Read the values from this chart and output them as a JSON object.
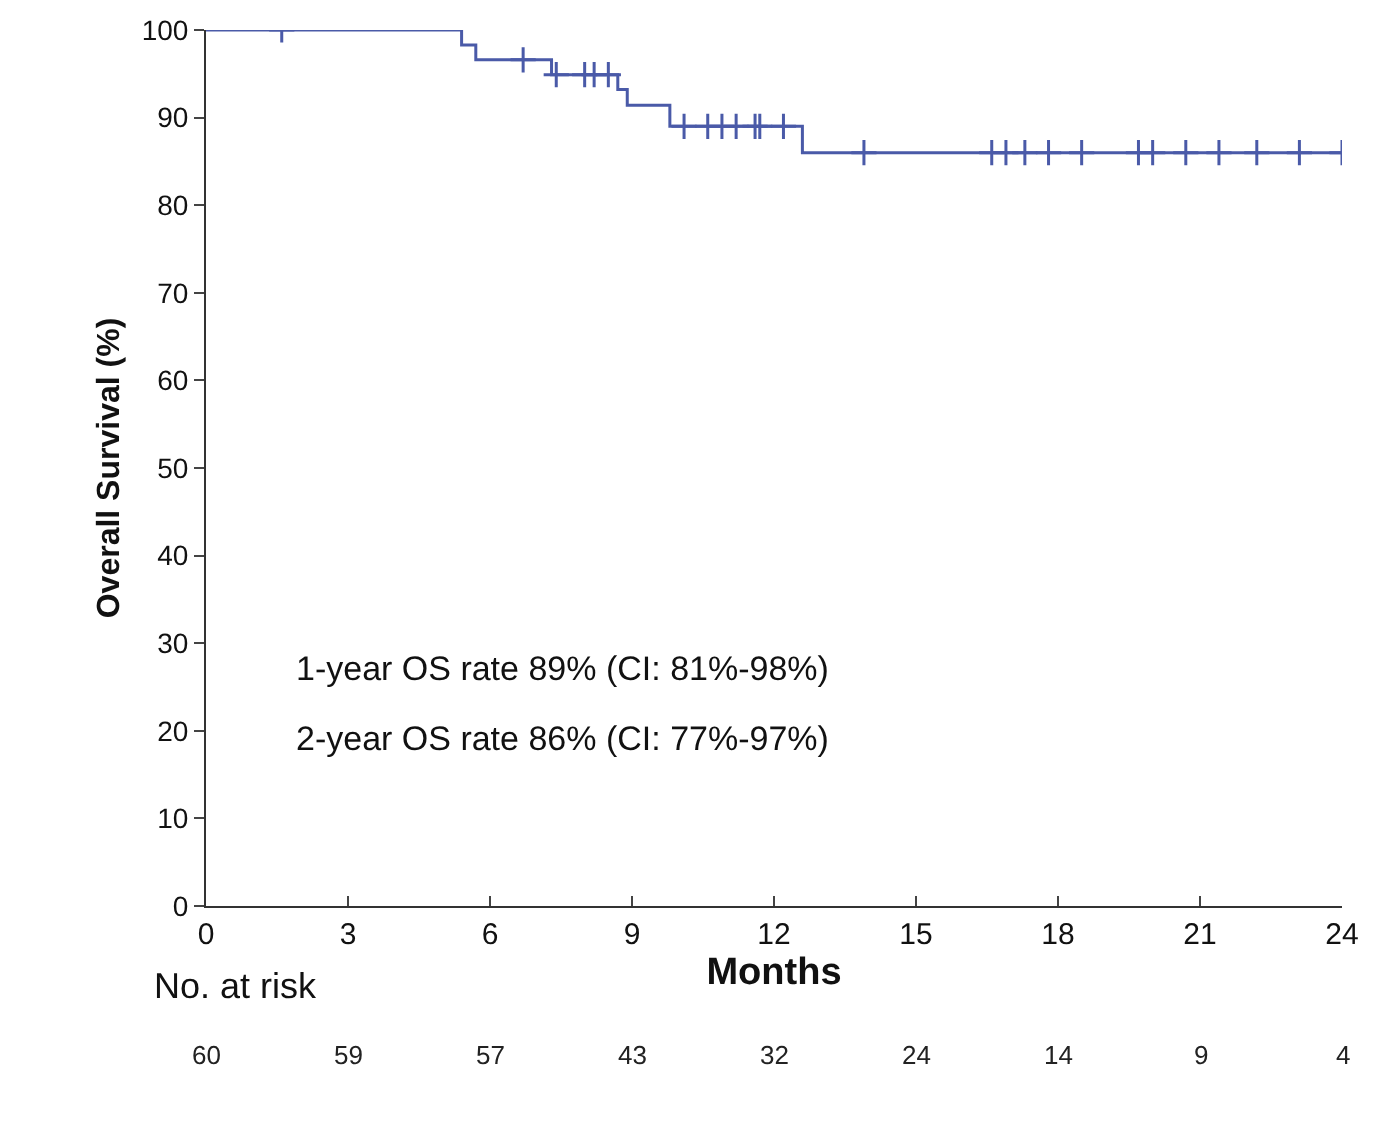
{
  "chart_data": {
    "type": "step",
    "xlabel": "Months",
    "ylabel": "Overall Survival (%)",
    "xlim": [
      0,
      24
    ],
    "xticks": [
      0,
      3,
      6,
      9,
      12,
      15,
      18,
      21,
      24
    ],
    "ylim": [
      0,
      100
    ],
    "yticks": [
      0,
      10,
      20,
      30,
      40,
      50,
      60,
      70,
      80,
      90,
      100
    ],
    "grid": false,
    "legend": false,
    "series": [
      {
        "color": "#4a5aa8",
        "x": [
          0,
          5.4,
          5.7,
          7.3,
          8.7,
          8.9,
          9.8,
          12.6,
          24
        ],
        "values": [
          100,
          98.3,
          96.6,
          94.9,
          93.2,
          91.4,
          89,
          86,
          86
        ]
      },
      {
        "type": "scatter",
        "marker": "cross",
        "color": "#4a5aa8",
        "x": [
          1.6,
          6.7,
          7.4,
          8,
          8.2,
          8.5,
          10.1,
          10.6,
          10.9,
          11.2,
          11.6,
          11.7,
          12.2,
          13.9,
          16.6,
          16.9,
          17.3,
          17.8,
          18.5,
          19.7,
          20,
          20.7,
          21.4,
          22.2,
          23.1,
          24
        ],
        "values": [
          100,
          96.6,
          94.9,
          94.9,
          94.9,
          94.9,
          89,
          89,
          89,
          89,
          89,
          89,
          89,
          86,
          86,
          86,
          86,
          86,
          86,
          86,
          86,
          86,
          86,
          86,
          86,
          86
        ]
      }
    ],
    "annotations": [
      "1-year OS rate 89% (CI: 81%-98%)",
      "2-year OS rate 86% (CI: 77%-97%)",
      "No. at risk",
      "60",
      "59",
      "57",
      "43",
      "32",
      "24",
      "14",
      "9",
      "4"
    ]
  }
}
